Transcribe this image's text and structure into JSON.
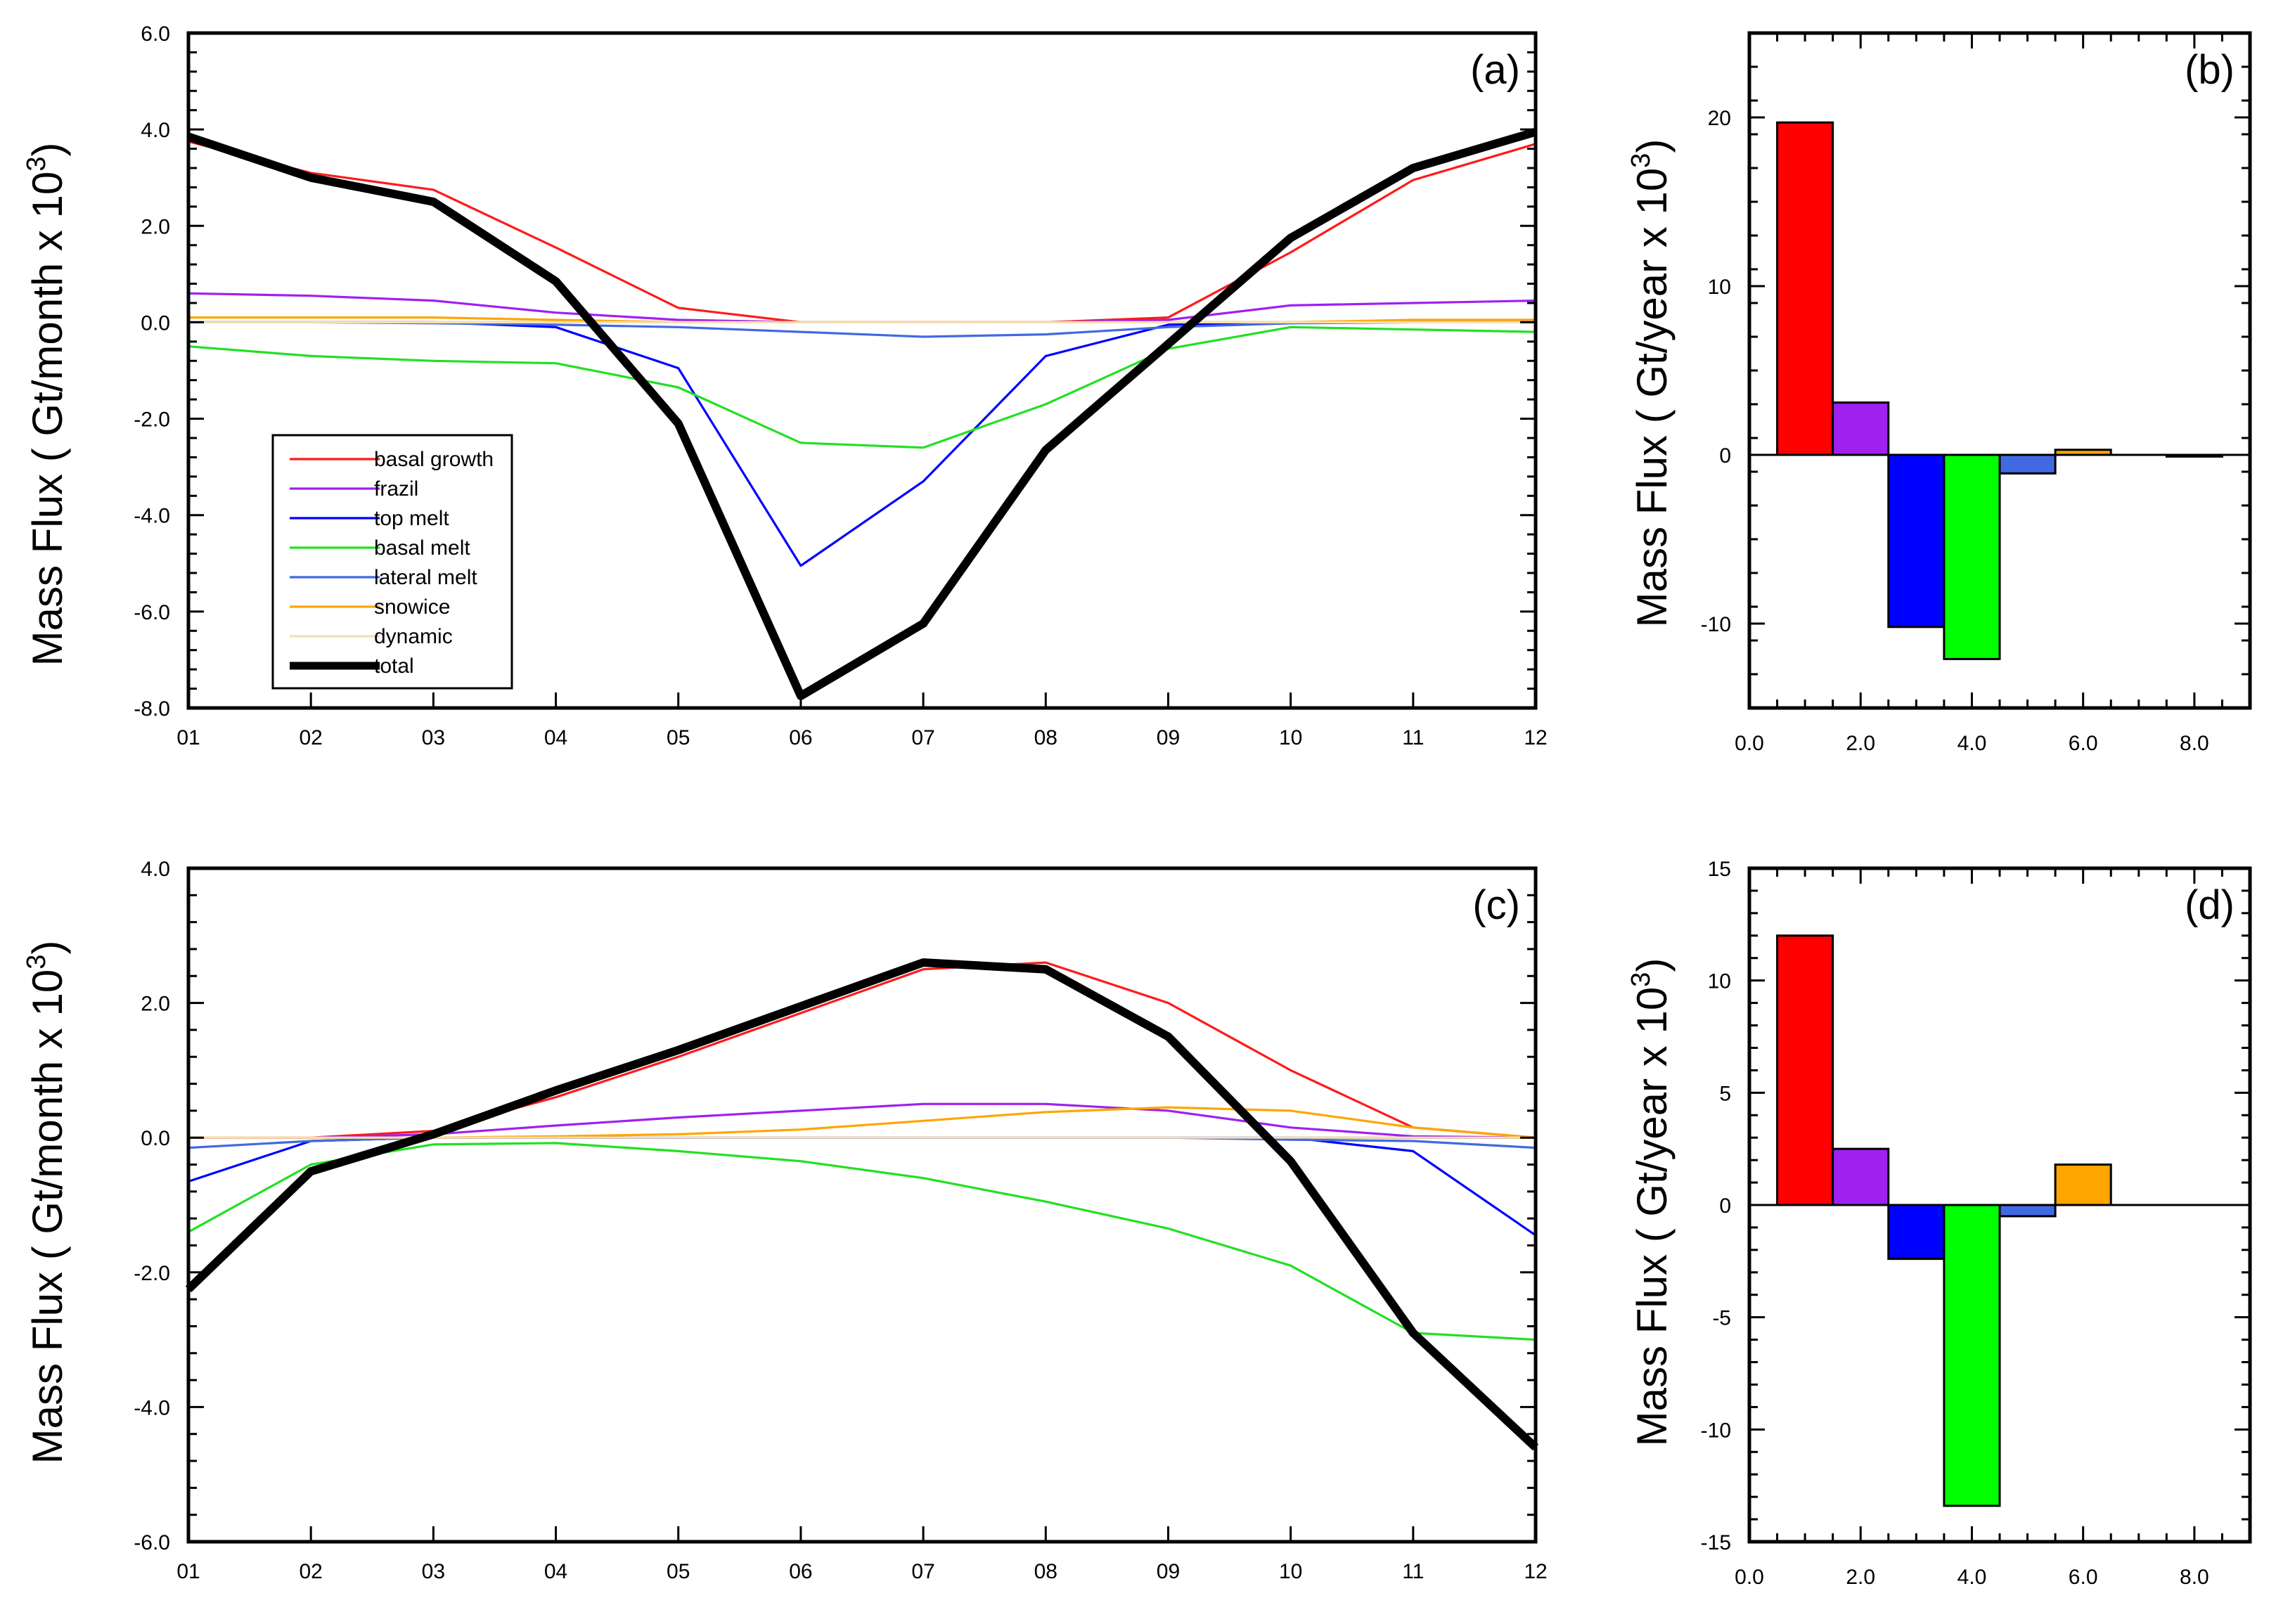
{
  "figure": {
    "ylabel_monthly": "Mass Flux ( Gt/month x 10",
    "ylabel_yearly": "Mass Flux ( Gt/year x 10",
    "ylabel_exponent": "3",
    "ylabel_close": ")"
  },
  "chart_data": [
    {
      "type": "line",
      "panel": "(a)",
      "x": [
        "01",
        "02",
        "03",
        "04",
        "05",
        "06",
        "07",
        "08",
        "09",
        "10",
        "11",
        "12"
      ],
      "ylim": [
        -8,
        6
      ],
      "yticks": [
        -8,
        -6,
        -4,
        -2,
        0,
        2,
        4,
        6
      ],
      "ytick_labels": [
        "-8.0",
        "-6.0",
        "-4.0",
        "-2.0",
        "0.0",
        "2.0",
        "4.0",
        "6.0"
      ],
      "legend": "lower-left",
      "series": [
        {
          "name": "basal growth",
          "color": "#ff1a1a",
          "width": 1,
          "values": [
            3.75,
            3.1,
            2.75,
            1.55,
            0.3,
            0.0,
            0.0,
            0.0,
            0.1,
            1.45,
            2.95,
            3.7
          ]
        },
        {
          "name": "frazil",
          "color": "#a020f0",
          "width": 1,
          "values": [
            0.6,
            0.55,
            0.45,
            0.2,
            0.05,
            0.0,
            0.0,
            0.0,
            0.05,
            0.35,
            0.4,
            0.45
          ]
        },
        {
          "name": "top melt",
          "color": "#0000ff",
          "width": 1,
          "values": [
            0.0,
            0.0,
            0.0,
            -0.1,
            -0.95,
            -5.05,
            -3.3,
            -0.7,
            -0.05,
            0.0,
            0.0,
            0.0
          ]
        },
        {
          "name": "basal melt",
          "color": "#22e022",
          "width": 1,
          "values": [
            -0.5,
            -0.7,
            -0.8,
            -0.85,
            -1.35,
            -2.5,
            -2.6,
            -1.7,
            -0.55,
            -0.1,
            -0.15,
            -0.2
          ]
        },
        {
          "name": "lateral melt",
          "color": "#4169e1",
          "width": 1,
          "values": [
            0.0,
            0.0,
            -0.02,
            -0.05,
            -0.1,
            -0.2,
            -0.3,
            -0.25,
            -0.1,
            -0.02,
            0.0,
            0.0
          ]
        },
        {
          "name": "snowice",
          "color": "#ffa500",
          "width": 1,
          "values": [
            0.1,
            0.1,
            0.1,
            0.05,
            0.0,
            0.0,
            0.0,
            0.0,
            0.0,
            0.0,
            0.05,
            0.05
          ]
        },
        {
          "name": "dynamic",
          "color": "#f5deb3",
          "width": 1,
          "values": [
            0.0,
            0.0,
            0.0,
            0.0,
            0.0,
            0.0,
            0.0,
            0.0,
            0.0,
            0.0,
            0.0,
            0.0
          ]
        },
        {
          "name": "total",
          "color": "#000000",
          "width": 3,
          "values": [
            3.85,
            3.0,
            2.5,
            0.85,
            -2.1,
            -7.75,
            -6.25,
            -2.65,
            -0.45,
            1.75,
            3.2,
            3.95
          ]
        }
      ]
    },
    {
      "type": "bar",
      "panel": "(b)",
      "xlim": [
        0,
        9
      ],
      "xticks": [
        0,
        2,
        4,
        6,
        8
      ],
      "xtick_labels": [
        "0.0",
        "2.0",
        "4.0",
        "6.0",
        "8.0"
      ],
      "ylim": [
        -15,
        25
      ],
      "yticks": [
        -10,
        0,
        10,
        20
      ],
      "ytick_labels": [
        "-10",
        "0",
        "10",
        "20"
      ],
      "x": [
        1,
        2,
        3,
        4,
        5,
        6,
        7,
        8
      ],
      "values": [
        19.7,
        3.1,
        -10.2,
        -12.1,
        -1.1,
        0.3,
        0.0,
        -0.1
      ],
      "colors": [
        "#ff0000",
        "#a020f0",
        "#0000ff",
        "#00ff00",
        "#4169e1",
        "#ffa500",
        "#f5deb3",
        "#000000"
      ]
    },
    {
      "type": "line",
      "panel": "(c)",
      "x": [
        "01",
        "02",
        "03",
        "04",
        "05",
        "06",
        "07",
        "08",
        "09",
        "10",
        "11",
        "12"
      ],
      "ylim": [
        -6,
        4
      ],
      "yticks": [
        -6,
        -4,
        -2,
        0,
        2,
        4
      ],
      "ytick_labels": [
        "-6.0",
        "-4.0",
        "-2.0",
        "0.0",
        "2.0",
        "4.0"
      ],
      "series": [
        {
          "name": "basal growth",
          "color": "#ff1a1a",
          "width": 1,
          "values": [
            0.0,
            0.0,
            0.1,
            0.6,
            1.2,
            1.85,
            2.5,
            2.6,
            2.0,
            1.0,
            0.15,
            0.0
          ]
        },
        {
          "name": "frazil",
          "color": "#a020f0",
          "width": 1,
          "values": [
            0.0,
            0.0,
            0.05,
            0.18,
            0.3,
            0.4,
            0.5,
            0.5,
            0.4,
            0.15,
            0.02,
            0.0
          ]
        },
        {
          "name": "top melt",
          "color": "#0000ff",
          "width": 1,
          "values": [
            -0.65,
            -0.05,
            0.0,
            0.0,
            0.0,
            0.0,
            0.0,
            0.0,
            0.0,
            0.0,
            -0.2,
            -1.45
          ]
        },
        {
          "name": "basal melt",
          "color": "#22e022",
          "width": 1,
          "values": [
            -1.4,
            -0.4,
            -0.1,
            -0.08,
            -0.2,
            -0.35,
            -0.6,
            -0.95,
            -1.35,
            -1.9,
            -2.9,
            -3.0
          ]
        },
        {
          "name": "lateral melt",
          "color": "#4169e1",
          "width": 1,
          "values": [
            -0.15,
            -0.05,
            0.0,
            0.0,
            0.0,
            0.0,
            0.0,
            0.0,
            0.0,
            -0.03,
            -0.05,
            -0.15
          ]
        },
        {
          "name": "snowice",
          "color": "#ffa500",
          "width": 1,
          "values": [
            0.0,
            0.0,
            0.0,
            0.02,
            0.05,
            0.12,
            0.25,
            0.38,
            0.45,
            0.4,
            0.15,
            0.0
          ]
        },
        {
          "name": "dynamic",
          "color": "#f5deb3",
          "width": 1,
          "values": [
            0.0,
            0.0,
            0.0,
            0.0,
            0.0,
            0.0,
            0.0,
            0.0,
            0.0,
            0.0,
            0.0,
            0.0
          ]
        },
        {
          "name": "total",
          "color": "#000000",
          "width": 3,
          "values": [
            -2.25,
            -0.5,
            0.05,
            0.7,
            1.3,
            1.95,
            2.6,
            2.5,
            1.5,
            -0.35,
            -2.9,
            -4.6
          ]
        }
      ]
    },
    {
      "type": "bar",
      "panel": "(d)",
      "xlim": [
        0,
        9
      ],
      "xticks": [
        0,
        2,
        4,
        6,
        8
      ],
      "xtick_labels": [
        "0.0",
        "2.0",
        "4.0",
        "6.0",
        "8.0"
      ],
      "ylim": [
        -15,
        15
      ],
      "yticks": [
        -15,
        -10,
        -5,
        0,
        5,
        10,
        15
      ],
      "ytick_labels": [
        "-15",
        "-10",
        "-5",
        "0",
        "5",
        "10",
        "15"
      ],
      "x": [
        1,
        2,
        3,
        4,
        5,
        6,
        7,
        8
      ],
      "values": [
        12.0,
        2.5,
        -2.4,
        -13.4,
        -0.5,
        1.8,
        0.0,
        0.0
      ],
      "colors": [
        "#ff0000",
        "#a020f0",
        "#0000ff",
        "#00ff00",
        "#4169e1",
        "#ffa500",
        "#f5deb3",
        "#000000"
      ]
    }
  ]
}
